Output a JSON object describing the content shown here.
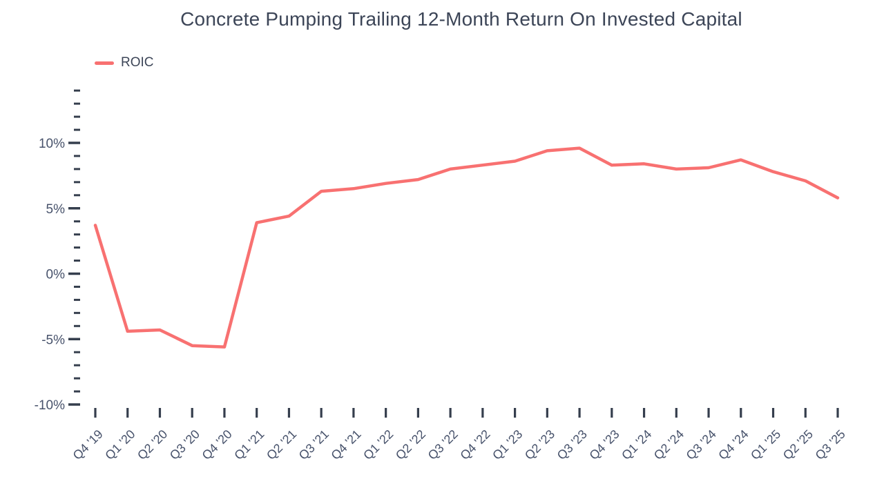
{
  "title": "Concrete Pumping Trailing 12-Month Return On Invested Capital",
  "legend": {
    "label": "ROIC"
  },
  "colors": {
    "line": "#F87171",
    "title_text": "#3C4557",
    "axis_label_text": "#47526B",
    "tick_mark": "#353E4D",
    "background": "#FFFFFF"
  },
  "chart_data": {
    "type": "line",
    "title": "Concrete Pumping Trailing 12-Month Return On Invested Capital",
    "xlabel": "",
    "ylabel": "",
    "unit": "%",
    "categories": [
      "Q4 '19",
      "Q1 '20",
      "Q2 '20",
      "Q3 '20",
      "Q4 '20",
      "Q1 '21",
      "Q2 '21",
      "Q3 '21",
      "Q4 '21",
      "Q1 '22",
      "Q2 '22",
      "Q3 '22",
      "Q4 '22",
      "Q1 '23",
      "Q2 '23",
      "Q3 '23",
      "Q4 '23",
      "Q1 '24",
      "Q2 '24",
      "Q3 '24",
      "Q4 '24",
      "Q1 '25",
      "Q2 '25",
      "Q3 '25"
    ],
    "series": [
      {
        "name": "ROIC",
        "color": "#F87171",
        "values": [
          3.7,
          -4.4,
          -4.3,
          -5.5,
          -5.6,
          3.9,
          4.4,
          6.3,
          6.5,
          6.9,
          7.2,
          8.0,
          8.3,
          8.6,
          9.4,
          9.6,
          8.3,
          8.4,
          8.0,
          8.1,
          8.7,
          7.8,
          7.1,
          5.8
        ]
      }
    ],
    "ylim": [
      -10,
      14
    ],
    "ytick_values": [
      10,
      5,
      0,
      -5,
      -10
    ],
    "ytick_labels": [
      "10%",
      "5%",
      "0%",
      "-5%",
      "-10%"
    ],
    "minor_tick_step": 1,
    "grid": false,
    "legend_position": "top-left"
  }
}
